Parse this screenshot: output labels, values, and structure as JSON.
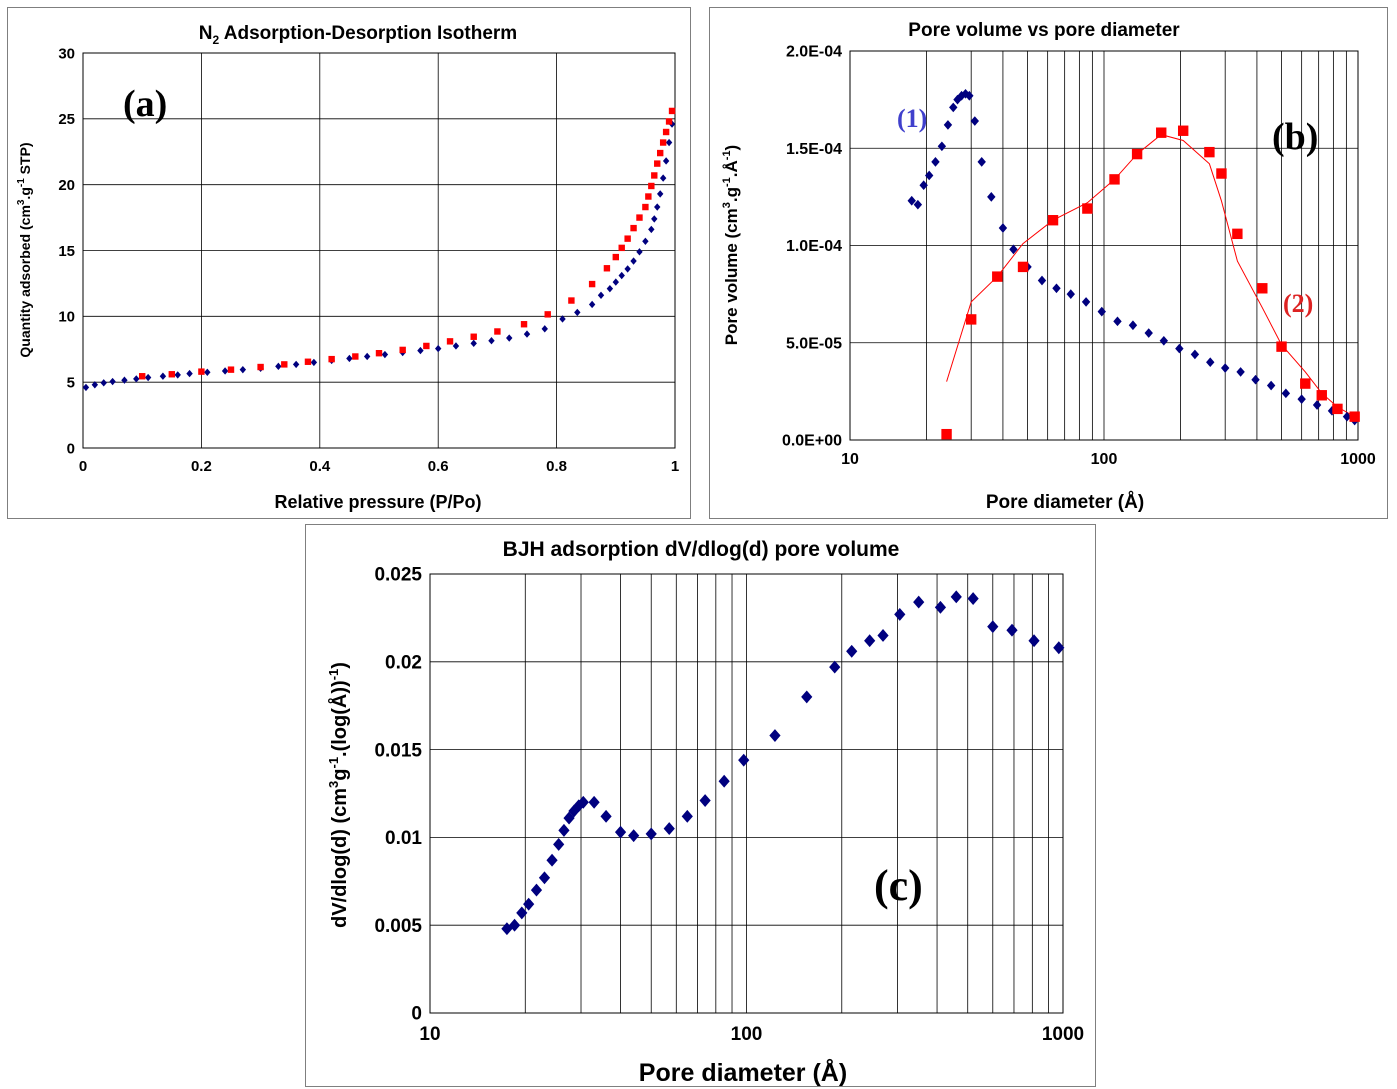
{
  "colors": {
    "series1": "#00007f",
    "series2": "#ff0000",
    "grid": "#000000"
  },
  "chart_data": [
    {
      "id": "a",
      "type": "scatter",
      "title_main": "N",
      "title_sub": "2",
      "title_rest": " Adsorption-Desorption Isotherm",
      "panel_label": "(a)",
      "xlabel": "Relative pressure (P/Po)",
      "ylabel_parts": [
        "Quantity adsorbed (cm",
        "3",
        ".g",
        "-1",
        " STP)"
      ],
      "xlim": [
        0,
        1
      ],
      "ylim": [
        0,
        30
      ],
      "xticks": [
        0,
        0.2,
        0.4,
        0.6,
        0.8,
        1
      ],
      "xtick_labels": [
        "0",
        "0.2",
        "0.4",
        "0.6",
        "0.8",
        "1"
      ],
      "yticks": [
        0,
        5,
        10,
        15,
        20,
        25,
        30
      ],
      "ytick_labels": [
        "0",
        "5",
        "10",
        "15",
        "20",
        "25",
        "30"
      ],
      "grid": true,
      "series": [
        {
          "marker": "diamond",
          "color": "#00007f",
          "x": [
            0.005,
            0.02,
            0.035,
            0.05,
            0.07,
            0.09,
            0.11,
            0.135,
            0.16,
            0.18,
            0.21,
            0.24,
            0.27,
            0.3,
            0.33,
            0.36,
            0.39,
            0.42,
            0.45,
            0.48,
            0.51,
            0.54,
            0.57,
            0.6,
            0.63,
            0.66,
            0.69,
            0.72,
            0.75,
            0.78,
            0.81,
            0.835,
            0.86,
            0.875,
            0.89,
            0.9,
            0.91,
            0.92,
            0.93,
            0.94,
            0.95,
            0.96,
            0.965,
            0.97,
            0.975,
            0.98,
            0.985,
            0.99,
            0.995
          ],
          "y": [
            4.6,
            4.8,
            4.95,
            5.05,
            5.15,
            5.25,
            5.35,
            5.45,
            5.55,
            5.65,
            5.75,
            5.85,
            5.95,
            6.05,
            6.2,
            6.35,
            6.5,
            6.65,
            6.8,
            6.95,
            7.1,
            7.25,
            7.4,
            7.55,
            7.75,
            7.95,
            8.15,
            8.35,
            8.65,
            9.05,
            9.8,
            10.3,
            10.9,
            11.6,
            12.1,
            12.6,
            13.1,
            13.6,
            14.2,
            14.9,
            15.7,
            16.6,
            17.4,
            18.3,
            19.3,
            20.5,
            21.8,
            23.2,
            24.6
          ]
        },
        {
          "marker": "square",
          "color": "#ff0000",
          "x": [
            0.1,
            0.15,
            0.2,
            0.25,
            0.3,
            0.34,
            0.38,
            0.42,
            0.46,
            0.5,
            0.54,
            0.58,
            0.62,
            0.66,
            0.7,
            0.745,
            0.785,
            0.825,
            0.86,
            0.885,
            0.9,
            0.91,
            0.92,
            0.93,
            0.94,
            0.95,
            0.955,
            0.96,
            0.965,
            0.97,
            0.975,
            0.98,
            0.985,
            0.99,
            0.995
          ],
          "y": [
            5.45,
            5.6,
            5.8,
            5.95,
            6.15,
            6.35,
            6.55,
            6.75,
            6.95,
            7.2,
            7.45,
            7.75,
            8.1,
            8.45,
            8.85,
            9.4,
            10.15,
            11.2,
            12.45,
            13.65,
            14.5,
            15.2,
            15.9,
            16.7,
            17.5,
            18.3,
            19.1,
            19.9,
            20.7,
            21.6,
            22.4,
            23.2,
            24.0,
            24.8,
            25.6
          ]
        }
      ]
    },
    {
      "id": "b",
      "type": "scatter",
      "title": "Pore volume vs pore diameter",
      "panel_label": "(b)",
      "series_label_1": "(1)",
      "series_label_2": "(2)",
      "xlabel": "Pore diameter (Å)",
      "ylabel_parts": [
        "Pore volume (cm",
        "3",
        ".g",
        "-1",
        ".Å",
        "-1",
        ")"
      ],
      "xscale": "log",
      "xlim": [
        10,
        1000
      ],
      "ylim": [
        0,
        0.0002
      ],
      "xticks": [
        10,
        100,
        1000
      ],
      "xtick_labels": [
        "10",
        "100",
        "1000"
      ],
      "yticks": [
        0,
        5e-05,
        0.0001,
        0.00015,
        0.0002
      ],
      "ytick_labels": [
        "0.0E+00",
        "5.0E-05",
        "1.0E-04",
        "1.5E-04",
        "2.0E-04"
      ],
      "grid": true,
      "series": [
        {
          "marker": "diamond",
          "color": "#00007f",
          "x": [
            17.5,
            18.5,
            19.5,
            20.5,
            21.7,
            23,
            24.3,
            25.5,
            26.5,
            27.5,
            28.5,
            29.5,
            31,
            33,
            36,
            40,
            44,
            50,
            57,
            65,
            74,
            85,
            98,
            113,
            130,
            150,
            172,
            198,
            228,
            262,
            300,
            345,
            395,
            455,
            520,
            600,
            690,
            790,
            905,
            970
          ],
          "y": [
            0.000123,
            0.000121,
            0.000131,
            0.000136,
            0.000143,
            0.000151,
            0.000162,
            0.000171,
            0.000175,
            0.000177,
            0.000178,
            0.000177,
            0.000164,
            0.000143,
            0.000125,
            0.000109,
            9.8e-05,
            8.9e-05,
            8.2e-05,
            7.8e-05,
            7.5e-05,
            7.1e-05,
            6.6e-05,
            6.1e-05,
            5.9e-05,
            5.5e-05,
            5.1e-05,
            4.7e-05,
            4.4e-05,
            4e-05,
            3.7e-05,
            3.5e-05,
            3.1e-05,
            2.8e-05,
            2.4e-05,
            2.1e-05,
            1.8e-05,
            1.5e-05,
            1.2e-05,
            1e-05
          ]
        },
        {
          "marker": "square",
          "color": "#ff0000",
          "x": [
            24,
            30,
            38,
            48,
            63,
            86,
            110,
            135,
            168,
            205,
            260,
            290,
            335,
            420,
            500,
            620,
            720,
            830,
            970
          ],
          "y": [
            3e-06,
            6.2e-05,
            8.4e-05,
            8.9e-05,
            0.000113,
            0.000119,
            0.000134,
            0.000147,
            0.000158,
            0.000159,
            0.000148,
            0.000137,
            0.000106,
            7.8e-05,
            4.8e-05,
            2.9e-05,
            2.3e-05,
            1.6e-05,
            1.2e-05
          ]
        }
      ],
      "fit_line": {
        "color": "#ff0000",
        "x": [
          24,
          30,
          38,
          48,
          63,
          86,
          110,
          135,
          168,
          205,
          260,
          290,
          335,
          420,
          500,
          620,
          720,
          830,
          970
        ],
        "y": [
          3e-05,
          7.1e-05,
          8.4e-05,
          0.000101,
          0.000113,
          0.000122,
          0.000134,
          0.000147,
          0.000157,
          0.000154,
          0.000142,
          0.000123,
          9.2e-05,
          6.8e-05,
          4.9e-05,
          3.5e-05,
          2.4e-05,
          1.7e-05,
          1.2e-05
        ]
      }
    },
    {
      "id": "c",
      "type": "scatter",
      "title": "BJH adsorption dV/dlog(d) pore volume",
      "panel_label": "(c)",
      "xlabel": "Pore diameter (Å)",
      "ylabel_parts": [
        "dV/dlog(d) (cm",
        "3",
        "g",
        "-1",
        ".(log(Å))",
        "-1",
        ")"
      ],
      "xscale": "log",
      "xlim": [
        10,
        1000
      ],
      "ylim": [
        0,
        0.025
      ],
      "xticks": [
        10,
        100,
        1000
      ],
      "xtick_labels": [
        "10",
        "100",
        "1000"
      ],
      "yticks": [
        0,
        0.005,
        0.01,
        0.015,
        0.02,
        0.025
      ],
      "ytick_labels": [
        "0",
        "0.005",
        "0.01",
        "0.015",
        "0.02",
        "0.025"
      ],
      "grid": true,
      "series": [
        {
          "marker": "diamond",
          "color": "#00007f",
          "x": [
            17.5,
            18.5,
            19.5,
            20.5,
            21.7,
            23,
            24.3,
            25.5,
            26.5,
            27.5,
            28.5,
            29.5,
            30.5,
            33,
            36,
            40,
            44,
            50,
            57,
            65,
            74,
            85,
            98,
            123,
            155,
            190,
            215,
            245,
            270,
            305,
            350,
            410,
            460,
            520,
            600,
            690,
            810,
            970
          ],
          "y": [
            0.0048,
            0.005,
            0.0057,
            0.0062,
            0.007,
            0.0077,
            0.0087,
            0.0096,
            0.0104,
            0.0111,
            0.0115,
            0.0118,
            0.012,
            0.012,
            0.0112,
            0.0103,
            0.0101,
            0.0102,
            0.0105,
            0.0112,
            0.0121,
            0.0132,
            0.0144,
            0.0158,
            0.018,
            0.0197,
            0.0206,
            0.0212,
            0.0215,
            0.0227,
            0.0234,
            0.0231,
            0.0237,
            0.0236,
            0.022,
            0.0218,
            0.0212,
            0.0208
          ]
        }
      ]
    }
  ]
}
